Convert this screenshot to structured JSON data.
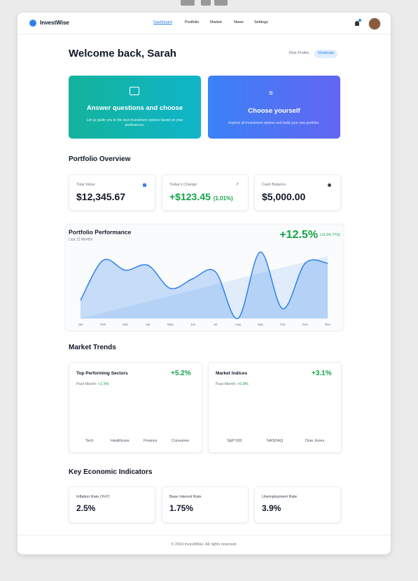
{
  "nav": {
    "brand": "InvestWise",
    "links": [
      "Dashboard",
      "Portfolio",
      "Market",
      "News",
      "Settings"
    ]
  },
  "welcome": {
    "title": "Welcome back, Sarah",
    "risk_label": "Risk Profile:",
    "risk_value": "Moderate"
  },
  "options": [
    {
      "title": "Answer questions and choose",
      "text": "Let us guide you to the best investment options based on your preferences."
    },
    {
      "title": "Choose yourself",
      "text": "Explore all investment options and build your own portfolio."
    }
  ],
  "overview": {
    "heading": "Portfolio Overview",
    "cards": [
      {
        "label": "Total Value",
        "value": "$12,345.67"
      },
      {
        "label": "Today's Change",
        "value": "+$123.45",
        "note": "(1.01%)"
      },
      {
        "label": "Cash Balance",
        "value": "$5,000.00"
      }
    ]
  },
  "chart_data": {
    "type": "line",
    "title": "Portfolio Performance",
    "subtitle": "Last 12 Months",
    "annotation": "+12.5%",
    "annotation_note": "(+2.3% YTD)",
    "categories": [
      "Jan",
      "Feb",
      "Mar",
      "Apr",
      "May",
      "Jun",
      "Jul",
      "Aug",
      "Sep",
      "Oct",
      "Nov",
      "Dec"
    ],
    "values": [
      26,
      83,
      69,
      76,
      43,
      57,
      67,
      0,
      95,
      14,
      79,
      79
    ],
    "ylim": [
      0,
      100
    ],
    "color": "#2f80ed"
  },
  "trends": {
    "heading": "Market Trends",
    "cards": [
      {
        "title": "Top Performing Sectors",
        "value": "+5.2%",
        "period": "Past Month:",
        "change": "+1.5%",
        "labels": [
          "Tech",
          "Healthcare",
          "Finance",
          "Consumer"
        ]
      },
      {
        "title": "Market Indices",
        "value": "+3.1%",
        "period": "Past Month:",
        "change": "+0.8%",
        "labels": [
          "S&P 500",
          "NASDAQ",
          "Dow Jones"
        ]
      }
    ]
  },
  "indicators": {
    "heading": "Key Economic Indicators",
    "cards": [
      {
        "label": "Inflation Rate (YoY)",
        "value": "2.5%"
      },
      {
        "label": "Base Interest Rate",
        "value": "1.75%"
      },
      {
        "label": "Unemployment Rate",
        "value": "3.9%"
      }
    ]
  },
  "footer": "© 2024 InvestWise. All rights reserved."
}
